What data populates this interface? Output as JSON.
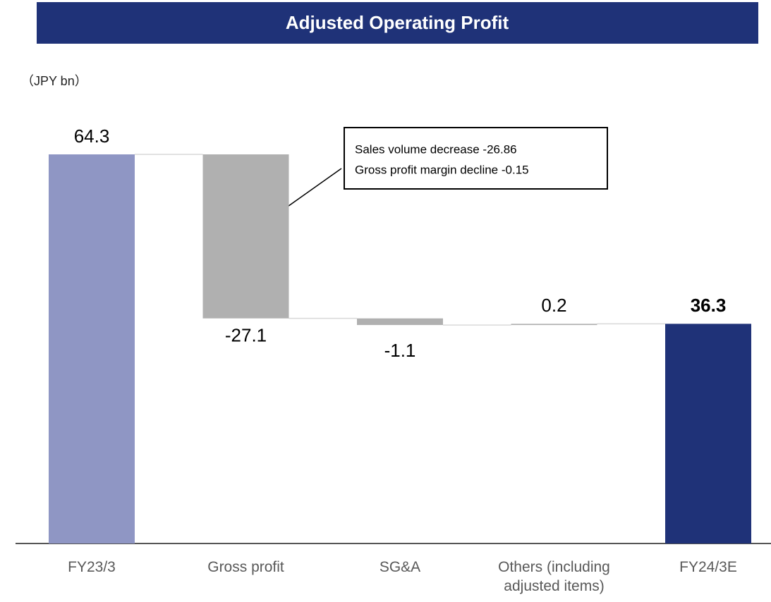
{
  "chart_data": {
    "type": "waterfall",
    "title": "Adjusted Operating Profit",
    "unit_label": "（JPY bn）",
    "categories": [
      "FY23/3",
      "Gross profit",
      "SG&A",
      "Others (including adjusted items)",
      "FY24/3E"
    ],
    "values": [
      64.3,
      -27.1,
      -1.1,
      0.2,
      36.3
    ],
    "colors": [
      "#8f96c4",
      "#b0b0b0",
      "#b0b0b0",
      "#b0b0b0",
      "#1f3278"
    ],
    "annotation": {
      "lines": [
        "Sales volume decrease  -26.86",
        "Gross profit margin decline  -0.15"
      ]
    }
  }
}
